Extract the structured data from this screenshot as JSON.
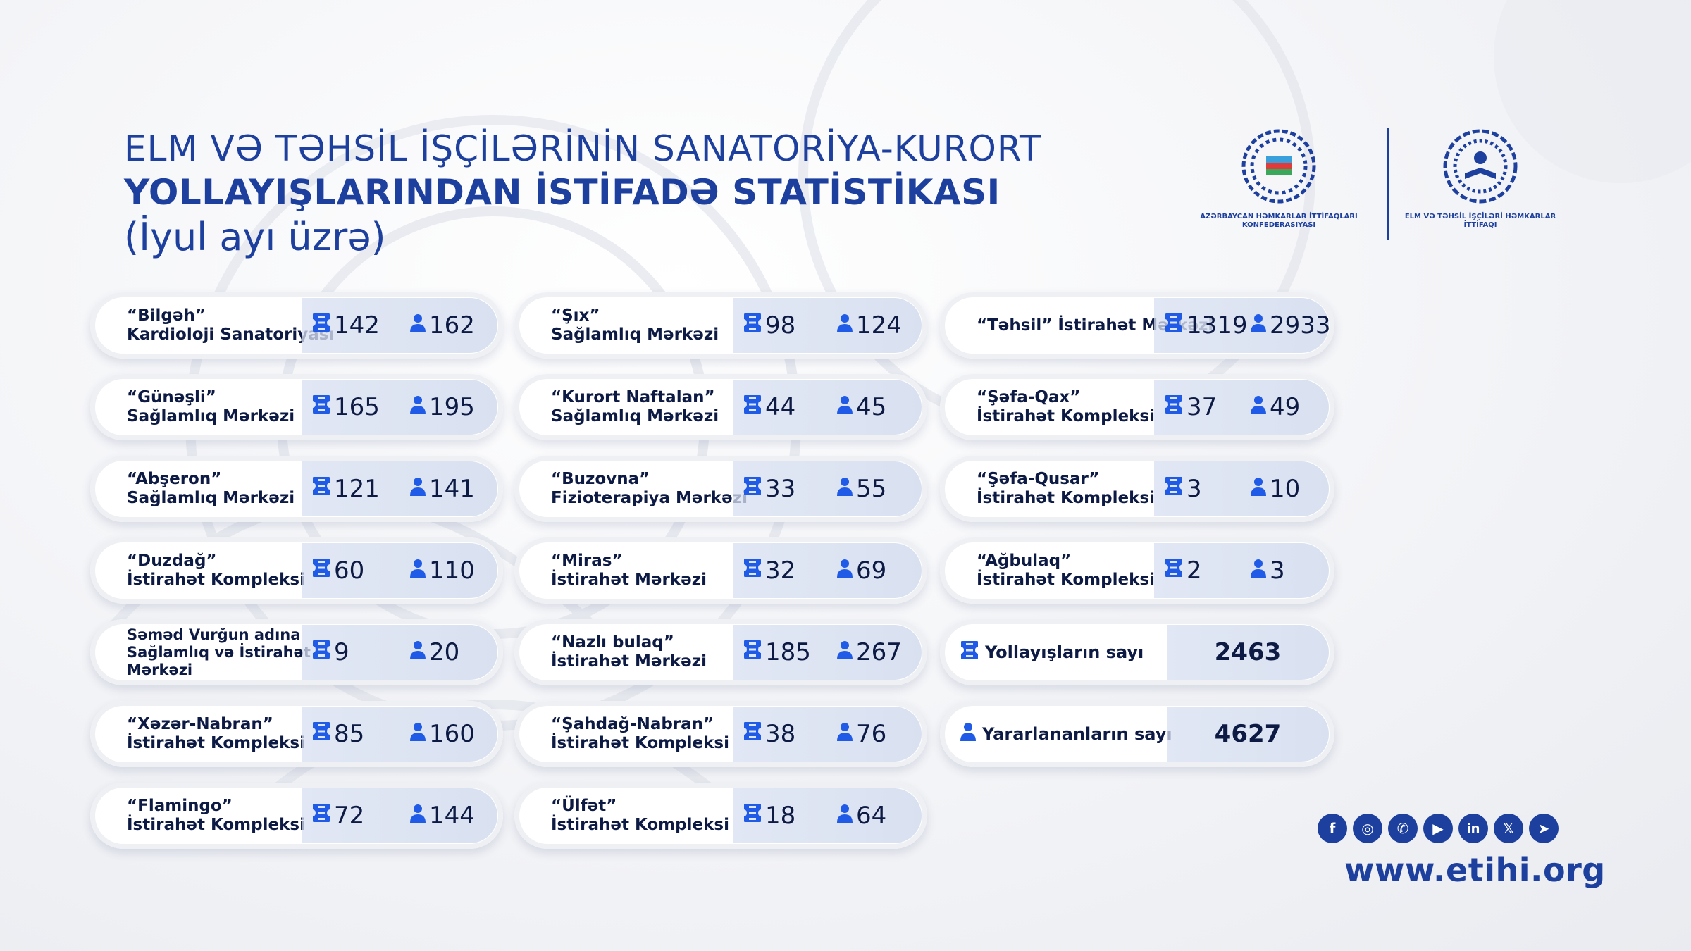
{
  "title": {
    "line1": "ELM VƏ TƏHSİL İŞÇİLƏRİNİN SANATORİYA-KURORT",
    "line2": "YOLLAYIŞLARINDAN İSTİFADƏ STATİSTİKASI",
    "line3": "(İyul ayı üzrə)"
  },
  "logos": {
    "left_caption": "AZƏRBAYCAN HƏMKARLAR İTTİFAQLARI KONFEDERASIYASI",
    "right_caption": "ELM VƏ TƏHSİL İŞÇİLƏRİ HƏMKARLAR İTTİFAQI"
  },
  "colors": {
    "brand": "#1d3f9e",
    "icon": "#1f5be6",
    "text": "#0c1a44"
  },
  "icons": {
    "voucher": "ticket-icon",
    "beneficiary": "person-icon"
  },
  "columns": [
    [
      {
        "name1": "“Bilgəh”",
        "name2": "Kardioloji Sanatoriyası",
        "vouchers": "142",
        "people": "162"
      },
      {
        "name1": "“Günəşli”",
        "name2": "Sağlamlıq Mərkəzi",
        "vouchers": "165",
        "people": "195"
      },
      {
        "name1": "“Abşeron”",
        "name2": "Sağlamlıq Mərkəzi",
        "vouchers": "121",
        "people": "141"
      },
      {
        "name1": "“Duzdağ”",
        "name2": "İstirahət Kompleksi",
        "vouchers": "60",
        "people": "110"
      },
      {
        "name1": "Səməd Vurğun adına",
        "name2": "Sağlamlıq və İstirahət",
        "name3": "Mərkəzi",
        "vouchers": "9",
        "people": "20"
      },
      {
        "name1": "“Xəzər-Nabran”",
        "name2": "İstirahət Kompleksi",
        "vouchers": "85",
        "people": "160"
      },
      {
        "name1": "“Flamingo”",
        "name2": "İstirahət Kompleksi",
        "vouchers": "72",
        "people": "144"
      }
    ],
    [
      {
        "name1": "“Şıx”",
        "name2": "Sağlamlıq Mərkəzi",
        "vouchers": "98",
        "people": "124"
      },
      {
        "name1": "“Kurort Naftalan”",
        "name2": "Sağlamlıq Mərkəzi",
        "vouchers": "44",
        "people": "45"
      },
      {
        "name1": "“Buzovna”",
        "name2": "Fizioterapiya Mərkəzi",
        "vouchers": "33",
        "people": "55"
      },
      {
        "name1": "“Miras”",
        "name2": "İstirahət Mərkəzi",
        "vouchers": "32",
        "people": "69"
      },
      {
        "name1": "“Nazlı bulaq”",
        "name2": "İstirahət Mərkəzi",
        "vouchers": "185",
        "people": "267"
      },
      {
        "name1": "“Şahdağ-Nabran”",
        "name2": "İstirahət Kompleksi",
        "vouchers": "38",
        "people": "76"
      },
      {
        "name1": "“Ülfət”",
        "name2": "İstirahət Kompleksi",
        "vouchers": "18",
        "people": "64"
      }
    ],
    [
      {
        "name1": "“Təhsil” İstirahət Mərkəzi",
        "name2": "",
        "vouchers": "1319",
        "people": "2933"
      },
      {
        "name1": "“Şəfa-Qax”",
        "name2": "İstirahət Kompleksi",
        "vouchers": "37",
        "people": "49"
      },
      {
        "name1": "“Şəfa-Qusar”",
        "name2": "İstirahət Kompleksi",
        "vouchers": "3",
        "people": "10"
      },
      {
        "name1": "“Ağbulaq”",
        "name2": "İstirahət Kompleksi",
        "vouchers": "2",
        "people": "3"
      }
    ]
  ],
  "summary": [
    {
      "label": "Yollayışların sayı",
      "icon": "ticket-icon",
      "value": "2463"
    },
    {
      "label": "Yararlananların sayı",
      "icon": "person-icon",
      "value": "4627"
    }
  ],
  "social": [
    "facebook-icon",
    "instagram-icon",
    "whatsapp-icon",
    "youtube-icon",
    "linkedin-icon",
    "x-icon",
    "telegram-icon"
  ],
  "website": "www.etihi.org"
}
